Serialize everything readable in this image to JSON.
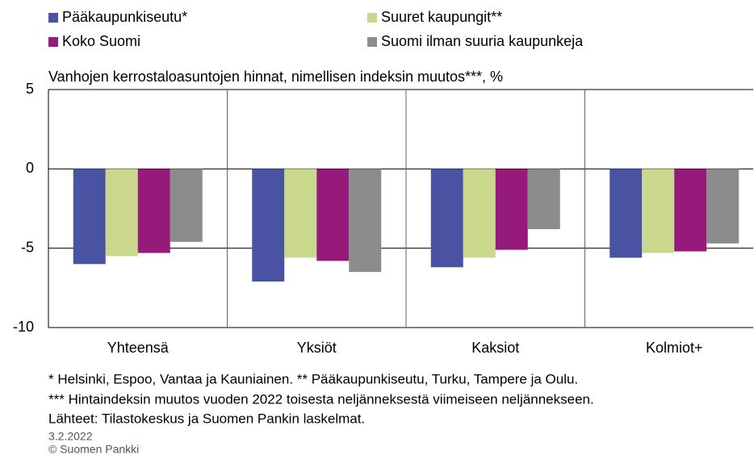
{
  "chart_data": {
    "type": "bar",
    "title": "Vanhojen kerrostaloasuntojen hinnat, nimellisen indeksin muutos***, %",
    "categories": [
      "Yhteensä",
      "Yksiöt",
      "Kaksiot",
      "Kolmiot+"
    ],
    "series": [
      {
        "name": "Pääkaupunkiseutu*",
        "color": "#4a52a2",
        "values": [
          -6.0,
          -7.1,
          -6.2,
          -5.6
        ]
      },
      {
        "name": "Suuret kaupungit**",
        "color": "#c9d88c",
        "values": [
          -5.5,
          -5.6,
          -5.6,
          -5.3
        ]
      },
      {
        "name": "Koko Suomi",
        "color": "#951a7a",
        "values": [
          -5.3,
          -5.8,
          -5.1,
          -5.2
        ]
      },
      {
        "name": "Suomi ilman suuria kaupunkeja",
        "color": "#8c8c8c",
        "values": [
          -4.6,
          -6.5,
          -3.8,
          -4.7
        ]
      }
    ],
    "ylim": [
      -10,
      5
    ],
    "yticks": [
      -10,
      -5,
      0,
      5
    ],
    "grid": true,
    "notes": [
      "* Helsinki, Espoo, Vantaa ja Kauniainen. ** Pääkaupunkiseutu, Turku, Tampere ja Oulu.",
      "*** Hintaindeksin muutos vuoden 2022 toisesta neljänneksestä viimeiseen neljännekseen.",
      "Lähteet: Tilastokeskus ja Suomen Pankin laskelmat."
    ],
    "date": "3.2.2022",
    "source": "© Suomen Pankki"
  }
}
